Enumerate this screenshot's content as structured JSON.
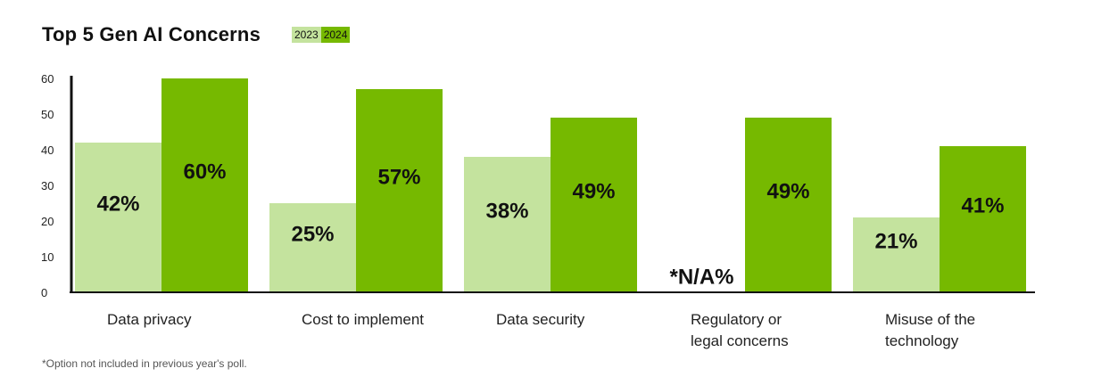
{
  "chart_data": {
    "type": "bar",
    "title": "Top 5 Gen AI Concerns",
    "categories": [
      [
        "Data privacy"
      ],
      [
        "Cost to implement"
      ],
      [
        "Data security"
      ],
      [
        "Regulatory or",
        "legal concerns"
      ],
      [
        "Misuse of the",
        "technology"
      ]
    ],
    "series": [
      {
        "name": "2023",
        "color": "#c4e39e",
        "values": [
          42,
          25,
          38,
          null,
          21
        ],
        "labels": [
          "42%",
          "25%",
          "38%",
          "*N/A%",
          "21%"
        ]
      },
      {
        "name": "2024",
        "color": "#76b900",
        "values": [
          60,
          57,
          49,
          49,
          41
        ],
        "labels": [
          "60%",
          "57%",
          "49%",
          "49%",
          "41%"
        ]
      }
    ],
    "ylim": [
      0,
      60
    ],
    "yticks": [
      0,
      10,
      20,
      30,
      40,
      50,
      60
    ],
    "grid": false,
    "legend_position": "top, next to title"
  },
  "footnote": "*Option not included in previous year's poll."
}
